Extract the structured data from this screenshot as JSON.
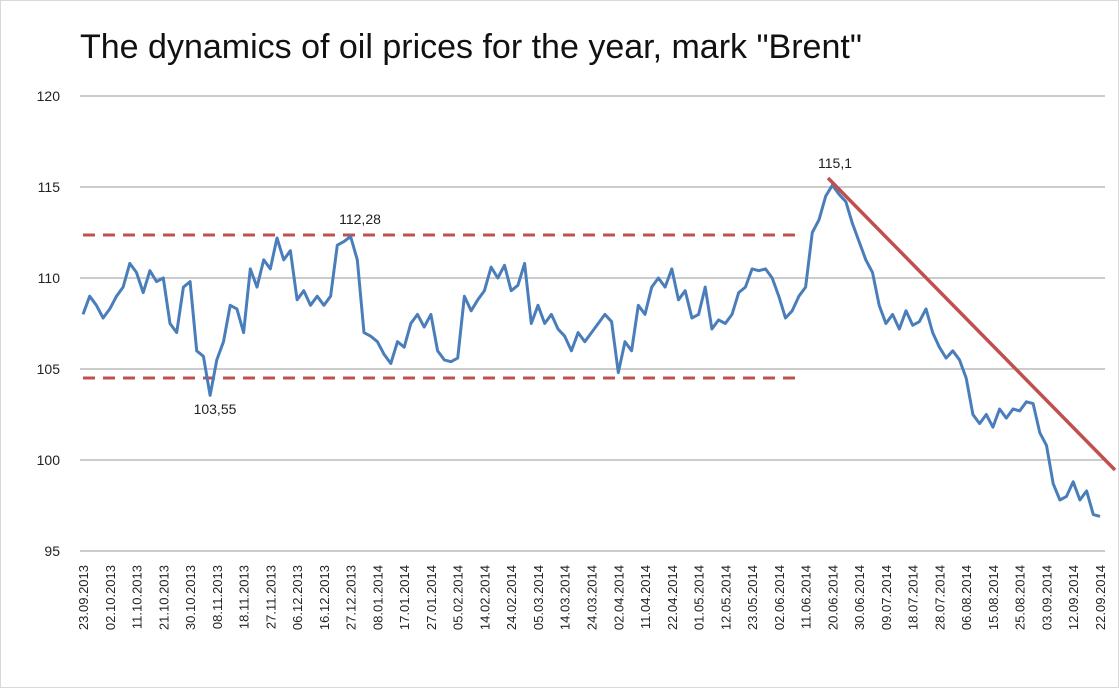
{
  "chart_data": {
    "type": "line",
    "title": "The dynamics of oil prices for the year, mark \"Brent\"",
    "categories": [
      "23.09.2013",
      null,
      null,
      null,
      "02.10.2013",
      null,
      null,
      null,
      "11.10.2013",
      null,
      null,
      null,
      "21.10.2013",
      null,
      null,
      null,
      "30.10.2013",
      null,
      null,
      null,
      "08.11.2013",
      null,
      null,
      null,
      "18.11.2013",
      null,
      null,
      null,
      "27.11.2013",
      null,
      null,
      null,
      "06.12.2013",
      null,
      null,
      null,
      "16.12.2013",
      null,
      null,
      null,
      "27.12.2013",
      null,
      null,
      null,
      "08.01.2014",
      null,
      null,
      null,
      "17.01.2014",
      null,
      null,
      null,
      "27.01.2014",
      null,
      null,
      null,
      "05.02.2014",
      null,
      null,
      null,
      "14.02.2014",
      null,
      null,
      null,
      "24.02.2014",
      null,
      null,
      null,
      "05.03.2014",
      null,
      null,
      null,
      "14.03.2014",
      null,
      null,
      null,
      "24.03.2014",
      null,
      null,
      null,
      "02.04.2014",
      null,
      null,
      null,
      "11.04.2014",
      null,
      null,
      null,
      "22.04.2014",
      null,
      null,
      null,
      "01.05.2014",
      null,
      null,
      null,
      "12.05.2014",
      null,
      null,
      null,
      "23.05.2014",
      null,
      null,
      null,
      "02.06.2014",
      null,
      null,
      null,
      "11.06.2014",
      null,
      null,
      null,
      "20.06.2014",
      null,
      null,
      null,
      "30.06.2014",
      null,
      null,
      null,
      "09.07.2014",
      null,
      null,
      null,
      "18.07.2014",
      null,
      null,
      null,
      "28.07.2014",
      null,
      null,
      null,
      "06.08.2014",
      null,
      null,
      null,
      "15.08.2014",
      null,
      null,
      null,
      "25.08.2014",
      null,
      null,
      null,
      "03.09.2014",
      null,
      null,
      null,
      "12.09.2014",
      null,
      null,
      null,
      "22.09.2014"
    ],
    "series": [
      {
        "color": "#4a7ebb",
        "values": [
          108,
          109,
          108.5,
          107.8,
          108.3,
          109,
          109.5,
          110.8,
          110.3,
          109.2,
          110.4,
          109.8,
          110,
          107.5,
          107,
          109.5,
          109.8,
          106,
          105.7,
          103.55,
          105.5,
          106.5,
          108.5,
          108.3,
          107,
          110.5,
          109.5,
          111,
          110.5,
          112.2,
          111,
          111.5,
          108.8,
          109.3,
          108.5,
          109,
          108.5,
          109,
          111.8,
          112,
          112.28,
          111,
          107,
          106.8,
          106.5,
          105.8,
          105.3,
          106.5,
          106.2,
          107.5,
          108,
          107.3,
          108,
          106,
          105.5,
          105.4,
          105.6,
          109,
          108.2,
          108.8,
          109.3,
          110.6,
          110,
          110.7,
          109.3,
          109.6,
          110.8,
          107.5,
          108.5,
          107.5,
          108,
          107.2,
          106.8,
          106,
          107,
          106.5,
          107,
          107.5,
          108,
          107.6,
          104.8,
          106.5,
          106,
          108.5,
          108,
          109.5,
          110,
          109.5,
          110.5,
          108.8,
          109.3,
          107.8,
          108,
          109.5,
          107.2,
          107.7,
          107.5,
          108,
          109.2,
          109.5,
          110.5,
          110.4,
          110.5,
          110,
          109,
          107.8,
          108.2,
          109,
          109.5,
          112.5,
          113.2,
          114.5,
          115.1,
          114.6,
          114.2,
          113,
          112,
          111,
          110.3,
          108.5,
          107.5,
          108,
          107.2,
          108.2,
          107.4,
          107.6,
          108.3,
          107,
          106.2,
          105.6,
          106,
          105.5,
          104.5,
          102.5,
          102,
          102.5,
          101.8,
          102.8,
          102.3,
          102.8,
          102.7,
          103.2,
          103.1,
          101.5,
          100.8,
          98.7,
          97.8,
          98,
          98.8,
          97.8,
          98.3,
          97,
          96.9
        ]
      }
    ],
    "ylim": [
      95,
      120
    ],
    "yticks": [
      95,
      100,
      105,
      110,
      115,
      120
    ],
    "grid": true,
    "annotations": [
      "115,1",
      "112,28",
      "103,55"
    ]
  }
}
